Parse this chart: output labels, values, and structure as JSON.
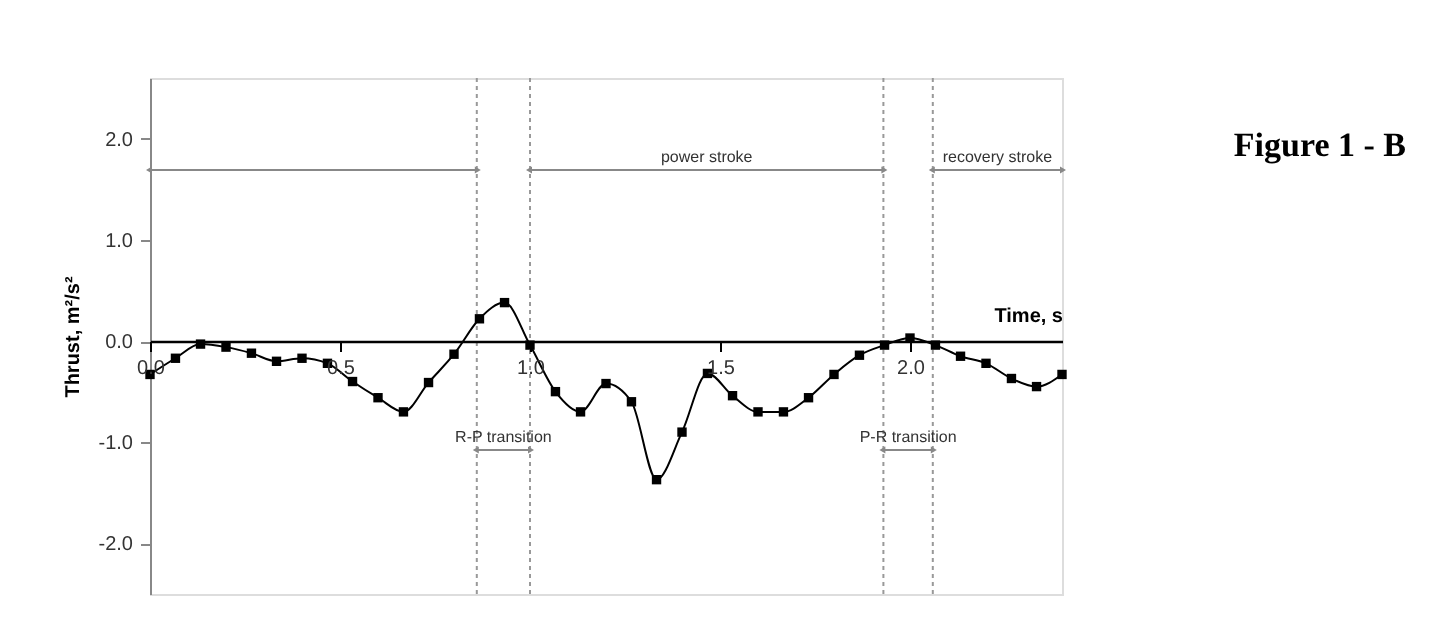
{
  "chart_data": {
    "type": "line",
    "title": "Figure 1 - B",
    "xlabel": "Time, s",
    "ylabel": "Thrust, m²/s²",
    "x": [
      0,
      0.067,
      0.133,
      0.2,
      0.267,
      0.333,
      0.4,
      0.467,
      0.533,
      0.6,
      0.667,
      0.733,
      0.8,
      0.867,
      0.933,
      1.0,
      1.067,
      1.133,
      1.2,
      1.267,
      1.333,
      1.4,
      1.467,
      1.533,
      1.6,
      1.667,
      1.733,
      1.8,
      1.867,
      1.933,
      2.0,
      2.067,
      2.133,
      2.2,
      2.267,
      2.333,
      2.4
    ],
    "series": [
      {
        "color": "#000000",
        "values": [
          -0.33,
          -0.17,
          -0.03,
          -0.06,
          -0.12,
          -0.2,
          -0.17,
          -0.22,
          -0.4,
          -0.56,
          -0.7,
          -0.41,
          -0.13,
          0.22,
          0.38,
          -0.04,
          -0.5,
          -0.7,
          -0.42,
          -0.6,
          -1.37,
          -0.9,
          -0.32,
          -0.54,
          -0.7,
          -0.7,
          -0.56,
          -0.33,
          -0.14,
          -0.04,
          0.03,
          -0.04,
          -0.15,
          -0.22,
          -0.37,
          -0.45,
          -0.33
        ]
      }
    ],
    "marker": "square",
    "line_style": "solid",
    "grid": false,
    "xlim": [
      0,
      2.4
    ],
    "xticks": [
      {
        "value": 0,
        "label": "0.0"
      },
      0.5,
      {
        "value": 1,
        "label": "1.0"
      },
      1.5,
      {
        "value": 2,
        "label": "2.0"
      }
    ],
    "ylim": [
      -2.5,
      2.6
    ],
    "yticks": [
      {
        "value": -2,
        "label": "-2.0"
      },
      {
        "value": -1,
        "label": "-1.0"
      },
      {
        "value": 0,
        "label": "0.0"
      },
      {
        "value": 1,
        "label": "1.0"
      },
      {
        "value": 2,
        "label": "2.0"
      }
    ],
    "ref_lines": [
      {
        "axis": "x",
        "value": 0.86,
        "color": "#999999",
        "line_style": "dotted"
      },
      {
        "axis": "x",
        "value": 1.0,
        "color": "#999999",
        "line_style": "dotted"
      },
      {
        "axis": "x",
        "value": 1.93,
        "color": "#999999",
        "line_style": "dotted"
      },
      {
        "axis": "x",
        "value": 2.06,
        "color": "#999999",
        "line_style": "dotted"
      }
    ],
    "annotations": [
      "power stroke",
      "recovery stroke",
      "R-P transition",
      "P-R transition"
    ]
  }
}
